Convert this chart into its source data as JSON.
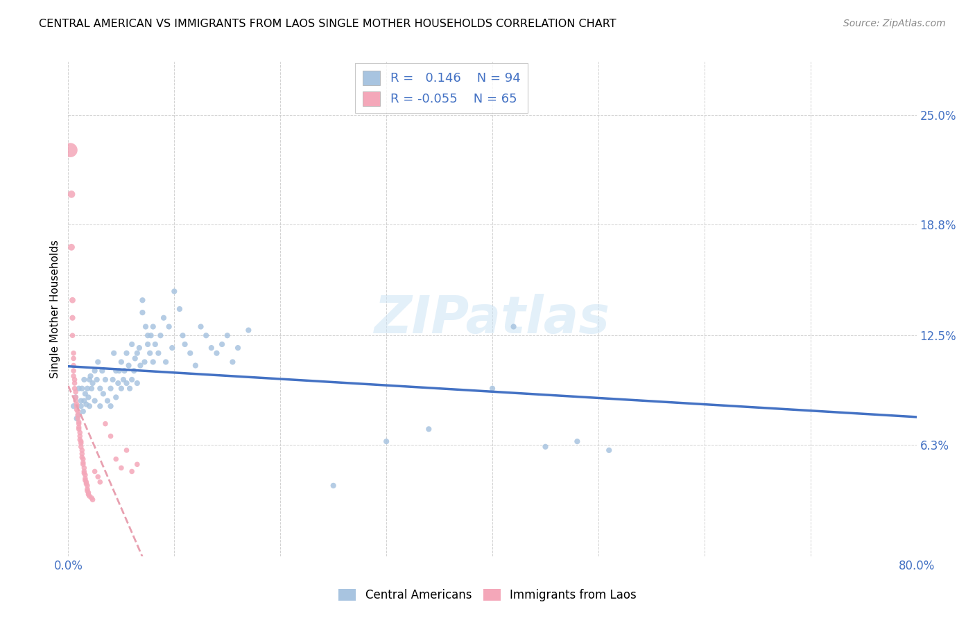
{
  "title": "CENTRAL AMERICAN VS IMMIGRANTS FROM LAOS SINGLE MOTHER HOUSEHOLDS CORRELATION CHART",
  "source": "Source: ZipAtlas.com",
  "ylabel": "Single Mother Households",
  "xlim": [
    0.0,
    0.8
  ],
  "ylim": [
    0.0,
    0.28
  ],
  "blue_color": "#a8c4e0",
  "pink_color": "#f4a7b9",
  "blue_line_color": "#4472c4",
  "pink_line_color": "#e8a0b0",
  "legend_blue_R": "0.146",
  "legend_blue_N": "94",
  "legend_pink_R": "-0.055",
  "legend_pink_N": "65",
  "watermark": "ZIPatlas",
  "blue_scatter_x": [
    0.005,
    0.007,
    0.008,
    0.01,
    0.01,
    0.012,
    0.012,
    0.013,
    0.014,
    0.015,
    0.015,
    0.016,
    0.017,
    0.018,
    0.019,
    0.02,
    0.02,
    0.021,
    0.022,
    0.023,
    0.025,
    0.025,
    0.027,
    0.028,
    0.03,
    0.03,
    0.032,
    0.033,
    0.035,
    0.037,
    0.04,
    0.04,
    0.042,
    0.043,
    0.045,
    0.045,
    0.047,
    0.048,
    0.05,
    0.05,
    0.052,
    0.053,
    0.055,
    0.055,
    0.057,
    0.058,
    0.06,
    0.06,
    0.062,
    0.063,
    0.065,
    0.065,
    0.067,
    0.068,
    0.07,
    0.07,
    0.072,
    0.073,
    0.075,
    0.075,
    0.077,
    0.078,
    0.08,
    0.08,
    0.082,
    0.085,
    0.087,
    0.09,
    0.092,
    0.095,
    0.098,
    0.1,
    0.105,
    0.108,
    0.11,
    0.115,
    0.12,
    0.125,
    0.13,
    0.135,
    0.14,
    0.145,
    0.15,
    0.155,
    0.16,
    0.17,
    0.25,
    0.3,
    0.34,
    0.4,
    0.42,
    0.45,
    0.48,
    0.51
  ],
  "blue_scatter_y": [
    0.085,
    0.09,
    0.078,
    0.095,
    0.08,
    0.085,
    0.088,
    0.095,
    0.082,
    0.1,
    0.088,
    0.092,
    0.086,
    0.095,
    0.09,
    0.1,
    0.085,
    0.102,
    0.095,
    0.098,
    0.105,
    0.088,
    0.1,
    0.11,
    0.095,
    0.085,
    0.105,
    0.092,
    0.1,
    0.088,
    0.095,
    0.085,
    0.1,
    0.115,
    0.09,
    0.105,
    0.098,
    0.105,
    0.11,
    0.095,
    0.1,
    0.105,
    0.115,
    0.098,
    0.108,
    0.095,
    0.12,
    0.1,
    0.105,
    0.112,
    0.115,
    0.098,
    0.118,
    0.108,
    0.138,
    0.145,
    0.11,
    0.13,
    0.125,
    0.12,
    0.115,
    0.125,
    0.13,
    0.11,
    0.12,
    0.115,
    0.125,
    0.135,
    0.11,
    0.13,
    0.118,
    0.15,
    0.14,
    0.125,
    0.12,
    0.115,
    0.108,
    0.13,
    0.125,
    0.118,
    0.115,
    0.12,
    0.125,
    0.11,
    0.118,
    0.128,
    0.04,
    0.065,
    0.072,
    0.095,
    0.13,
    0.062,
    0.065,
    0.06
  ],
  "pink_scatter_x": [
    0.002,
    0.003,
    0.003,
    0.004,
    0.004,
    0.004,
    0.005,
    0.005,
    0.005,
    0.005,
    0.005,
    0.006,
    0.006,
    0.006,
    0.007,
    0.007,
    0.007,
    0.008,
    0.008,
    0.008,
    0.009,
    0.009,
    0.009,
    0.01,
    0.01,
    0.01,
    0.01,
    0.011,
    0.011,
    0.011,
    0.012,
    0.012,
    0.012,
    0.013,
    0.013,
    0.013,
    0.014,
    0.014,
    0.014,
    0.015,
    0.015,
    0.015,
    0.016,
    0.016,
    0.016,
    0.017,
    0.017,
    0.018,
    0.018,
    0.018,
    0.019,
    0.019,
    0.02,
    0.022,
    0.023,
    0.025,
    0.028,
    0.03,
    0.035,
    0.04,
    0.045,
    0.05,
    0.055,
    0.06,
    0.065
  ],
  "pink_scatter_y": [
    0.23,
    0.205,
    0.175,
    0.145,
    0.135,
    0.125,
    0.115,
    0.112,
    0.108,
    0.105,
    0.102,
    0.1,
    0.098,
    0.095,
    0.093,
    0.09,
    0.088,
    0.086,
    0.085,
    0.083,
    0.082,
    0.08,
    0.078,
    0.076,
    0.075,
    0.073,
    0.072,
    0.07,
    0.068,
    0.066,
    0.065,
    0.064,
    0.062,
    0.06,
    0.058,
    0.056,
    0.055,
    0.053,
    0.052,
    0.05,
    0.048,
    0.047,
    0.046,
    0.044,
    0.043,
    0.042,
    0.041,
    0.04,
    0.038,
    0.037,
    0.036,
    0.035,
    0.034,
    0.033,
    0.032,
    0.048,
    0.045,
    0.042,
    0.075,
    0.068,
    0.055,
    0.05,
    0.06,
    0.048,
    0.052
  ],
  "pink_scatter_sizes": [
    220,
    60,
    50,
    40,
    35,
    30,
    30,
    30,
    30,
    30,
    30,
    30,
    30,
    30,
    30,
    30,
    30,
    30,
    30,
    30,
    30,
    30,
    30,
    30,
    30,
    30,
    30,
    30,
    30,
    30,
    30,
    30,
    30,
    30,
    30,
    30,
    30,
    30,
    30,
    30,
    30,
    30,
    30,
    30,
    30,
    30,
    30,
    30,
    30,
    30,
    30,
    30,
    30,
    30,
    30,
    30,
    30,
    30,
    30,
    30,
    30,
    30,
    30,
    30,
    30
  ]
}
